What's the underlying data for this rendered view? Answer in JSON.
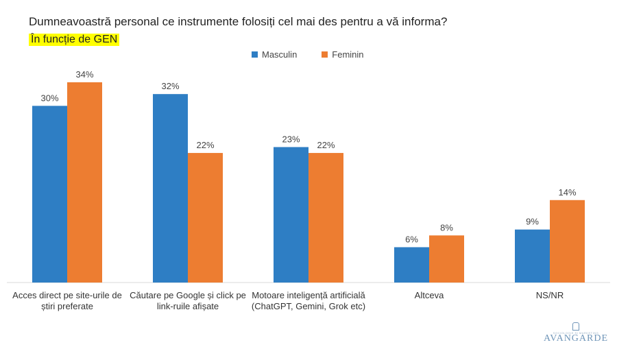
{
  "header": {
    "title": "Dumneavoastră personal ce instrumente folosiți cel mai des pentru a vă informa?",
    "subtitle": "În funcție de GEN"
  },
  "colors": {
    "masculin": "#2e7ec4",
    "feminin": "#ed7d31",
    "axis": "#d9d9d9"
  },
  "chart_data": {
    "type": "bar",
    "categories": [
      [
        "Acces direct pe site-urile de",
        "știri preferate"
      ],
      [
        "Căutare pe Google și click pe",
        "link-ruile afișate"
      ],
      [
        "Motoare inteligență artificială",
        "(ChatGPT, Gemini, Grok etc)"
      ],
      [
        "Altceva"
      ],
      [
        "NS/NR"
      ]
    ],
    "series": [
      {
        "name": "Masculin",
        "values": [
          30,
          32,
          23,
          6,
          9
        ],
        "labels": [
          "30%",
          "32%",
          "23%",
          "6%",
          "9%"
        ]
      },
      {
        "name": "Feminin",
        "values": [
          34,
          22,
          22,
          8,
          14
        ],
        "labels": [
          "34%",
          "22%",
          "22%",
          "8%",
          "14%"
        ]
      }
    ],
    "ylim": [
      0,
      34
    ],
    "grid": false,
    "legend": "top-center"
  },
  "logo": {
    "text": "AVANGARDE",
    "small": "SOCIOLOGIE ȘI MARKETING"
  }
}
